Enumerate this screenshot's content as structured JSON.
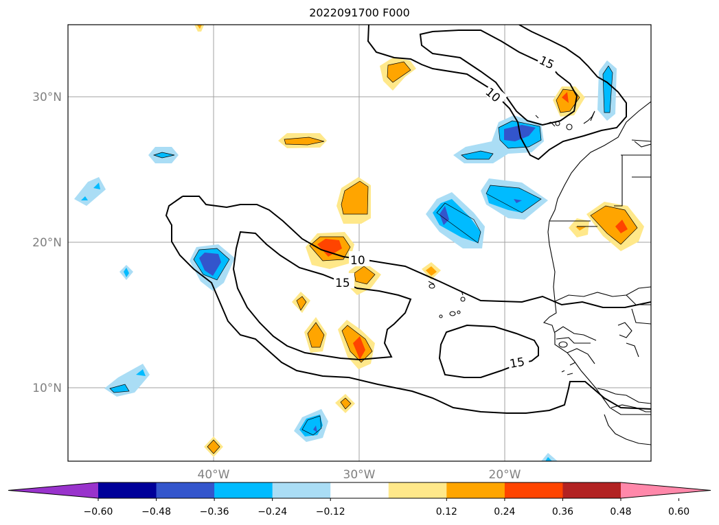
{
  "title": "2022091700 F000",
  "map": {
    "lat_labels": [
      "30°N",
      "20°N",
      "10°N"
    ],
    "lon_labels": [
      "40°W",
      "30°W",
      "20°W"
    ],
    "contour_labels": [
      "15",
      "10",
      "10",
      "15",
      "15"
    ]
  },
  "colorbar": {
    "ticks": [
      "−0.60",
      "−0.48",
      "−0.36",
      "−0.24",
      "−0.12",
      "0.12",
      "0.24",
      "0.36",
      "0.48",
      "0.60"
    ],
    "colors": [
      "#9933cc",
      "#000099",
      "#3355cc",
      "#00bbff",
      "#aaddf5",
      "#ffffff",
      "#ffe88a",
      "#ffa500",
      "#ff4400",
      "#b22222",
      "#ff88aa"
    ]
  }
}
